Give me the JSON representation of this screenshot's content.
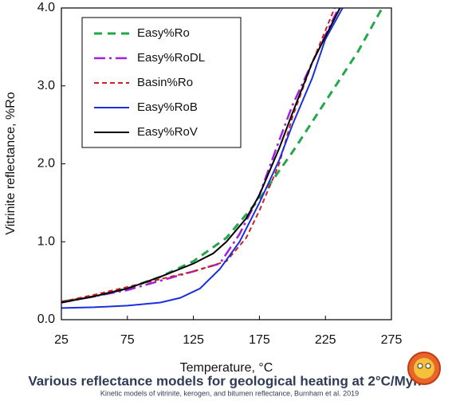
{
  "chart_data": {
    "type": "line",
    "xlabel": "Temperature, °C",
    "ylabel": "Vitrinite reflectance, %Ro",
    "caption": "Various reflectance models for geological heating at 2°C/Myr.",
    "source": "Kinetic models of vitrinite, kerogen, and bitumen reflectance, Burnham et al. 2019",
    "xlim": [
      25,
      275
    ],
    "ylim": [
      0,
      4
    ],
    "xticks": [
      25,
      75,
      125,
      175,
      225,
      275
    ],
    "yticks": [
      {
        "value": 0,
        "label": "0.0"
      },
      {
        "value": 1,
        "label": "1.0"
      },
      {
        "value": 2,
        "label": "2.0"
      },
      {
        "value": 3,
        "label": "3.0"
      },
      {
        "value": 4,
        "label": "4.0"
      }
    ],
    "grid": false,
    "legend": "upper left",
    "series": [
      {
        "name": "Easy%Ro",
        "color": "#22a84a",
        "line_style": "dashed",
        "x": [
          25,
          50,
          75,
          100,
          125,
          150,
          175,
          200,
          225,
          250,
          268
        ],
        "values": [
          0.23,
          0.3,
          0.4,
          0.55,
          0.75,
          1.05,
          1.55,
          2.15,
          2.8,
          3.45,
          4.0
        ]
      },
      {
        "name": "Easy%RoDL",
        "color": "#a020e0",
        "line_style": "dashdot",
        "x": [
          25,
          50,
          75,
          100,
          125,
          145,
          160,
          175,
          190,
          200,
          215,
          235
        ],
        "values": [
          0.22,
          0.3,
          0.38,
          0.5,
          0.62,
          0.72,
          1.1,
          1.6,
          2.3,
          2.75,
          3.3,
          4.0
        ]
      },
      {
        "name": "Basin%Ro",
        "color": "#cc2222",
        "line_style": "dashed-short",
        "x": [
          25,
          50,
          75,
          100,
          125,
          150,
          165,
          175,
          190,
          200,
          215,
          232
        ],
        "values": [
          0.23,
          0.32,
          0.42,
          0.52,
          0.62,
          0.75,
          1.05,
          1.4,
          2.0,
          2.6,
          3.3,
          4.0
        ]
      },
      {
        "name": "Easy%RoB",
        "color": "#1a2fe0",
        "line_style": "solid",
        "x": [
          25,
          50,
          75,
          100,
          115,
          130,
          145,
          160,
          175,
          190,
          200,
          215,
          225,
          238
        ],
        "values": [
          0.15,
          0.16,
          0.18,
          0.22,
          0.28,
          0.4,
          0.65,
          1.0,
          1.5,
          2.05,
          2.5,
          3.1,
          3.6,
          4.0
        ]
      },
      {
        "name": "Easy%RoV",
        "color": "#000000",
        "line_style": "solid",
        "x": [
          25,
          50,
          75,
          100,
          125,
          140,
          150,
          165,
          175,
          190,
          200,
          215,
          236
        ],
        "values": [
          0.22,
          0.3,
          0.4,
          0.55,
          0.72,
          0.85,
          1.0,
          1.3,
          1.6,
          2.2,
          2.65,
          3.3,
          4.0
        ]
      }
    ]
  }
}
